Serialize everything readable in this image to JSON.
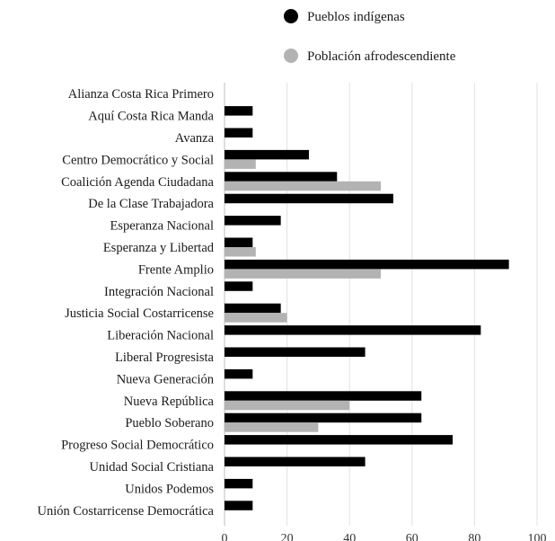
{
  "chart_data": {
    "type": "bar",
    "orientation": "horizontal",
    "categories": [
      "Alianza Costa Rica Primero",
      "Aquí Costa Rica Manda",
      "Avanza",
      "Centro Democrático y Social",
      "Coalición Agenda Ciudadana",
      "De la Clase Trabajadora",
      "Esperanza Nacional",
      "Esperanza y Libertad",
      "Frente Amplio",
      "Integración Nacional",
      "Justicia Social Costarricense",
      "Liberación Nacional",
      "Liberal Progresista",
      "Nueva Generación",
      "Nueva República",
      "Pueblo Soberano",
      "Progreso Social Democrático",
      "Unidad Social Cristiana",
      "Unidos Podemos",
      "Unión Costarricense Democrática"
    ],
    "series": [
      {
        "name": "Pueblos indígenas",
        "color": "#000000",
        "values": [
          0,
          9,
          9,
          27,
          36,
          54,
          18,
          9,
          91,
          9,
          18,
          82,
          45,
          9,
          63,
          63,
          73,
          45,
          9,
          9
        ]
      },
      {
        "name": "Población afrodescendiente",
        "color": "#b3b3b3",
        "values": [
          0,
          0,
          0,
          10,
          50,
          0,
          0,
          10,
          50,
          0,
          20,
          0,
          0,
          0,
          40,
          30,
          0,
          0,
          0,
          0
        ]
      }
    ],
    "xlim": [
      0,
      100
    ],
    "xticks": [
      0,
      20,
      40,
      60,
      80,
      100
    ],
    "grid": "vertical",
    "legend_position": "top-center"
  }
}
